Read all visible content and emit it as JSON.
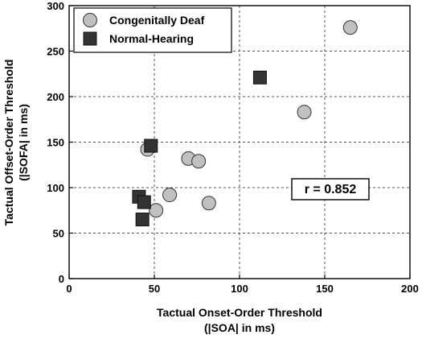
{
  "chart_data": {
    "type": "scatter",
    "xlabel": [
      "Tactual Onset-Order Threshold",
      "(|SOA| in ms)"
    ],
    "ylabel": [
      "Tactual Offset-Order Threshold",
      "(|SOFA| in ms)"
    ],
    "xlim": [
      0,
      200
    ],
    "ylim": [
      0,
      300
    ],
    "xticks": [
      0,
      50,
      100,
      150,
      200
    ],
    "yticks": [
      0,
      50,
      100,
      150,
      200,
      250,
      300
    ],
    "grid": true,
    "legend_position": "top-left",
    "series": [
      {
        "name": "Congenitally Deaf",
        "marker": "circle",
        "color": "#c0c0c0",
        "points": [
          {
            "x": 165,
            "y": 276
          },
          {
            "x": 138,
            "y": 183
          },
          {
            "x": 46,
            "y": 142
          },
          {
            "x": 70,
            "y": 132
          },
          {
            "x": 76,
            "y": 129
          },
          {
            "x": 59,
            "y": 92
          },
          {
            "x": 82,
            "y": 83
          },
          {
            "x": 51,
            "y": 75
          }
        ]
      },
      {
        "name": "Normal-Hearing",
        "marker": "square",
        "color": "#333333",
        "points": [
          {
            "x": 112,
            "y": 221
          },
          {
            "x": 48,
            "y": 146
          },
          {
            "x": 41,
            "y": 90
          },
          {
            "x": 44,
            "y": 84
          },
          {
            "x": 43,
            "y": 65
          }
        ]
      }
    ],
    "annotations": [
      {
        "text": "r = 0.852",
        "x": 150,
        "y": 103
      }
    ]
  }
}
